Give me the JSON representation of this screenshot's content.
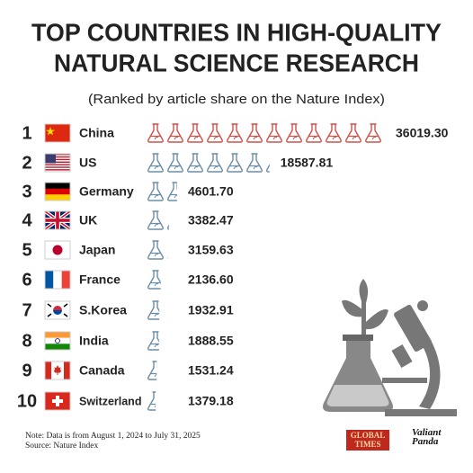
{
  "chart_data": {
    "type": "pictograph",
    "title": [
      "TOP COUNTRIES IN HIGH-QUALITY",
      "NATURAL SCIENCE RESEARCH"
    ],
    "subtitle": "(Ranked by article share on the Nature Index)",
    "ranks": [
      1,
      2,
      3,
      4,
      5,
      6,
      7,
      8,
      9,
      10
    ],
    "categories": [
      "China",
      "US",
      "Germany",
      "UK",
      "Japan",
      "France",
      "S.Korea",
      "India",
      "Canada",
      "Switzerland"
    ],
    "values": [
      36019.3,
      18587.81,
      4601.7,
      3382.47,
      3159.63,
      2136.6,
      1932.91,
      1888.55,
      1531.24,
      1379.18
    ],
    "value_labels": [
      "36019.30",
      "18587.81",
      "4601.70",
      "3382.47",
      "3159.63",
      "2136.60",
      "1932.91",
      "1888.55",
      "1531.24",
      "1379.18"
    ],
    "colors": [
      "#d0504a",
      "#6b8ea6",
      "#6b8ea6",
      "#6b8ea6",
      "#6b8ea6",
      "#6b8ea6",
      "#6b8ea6",
      "#6b8ea6",
      "#6b8ea6",
      "#6b8ea6"
    ],
    "notes": [
      "Note: Data is from August 1, 2024 to July 31, 2025",
      "Source: Nature Index"
    ],
    "logos": [
      "GLOBAL TIMES",
      "Valiant Panda"
    ]
  }
}
